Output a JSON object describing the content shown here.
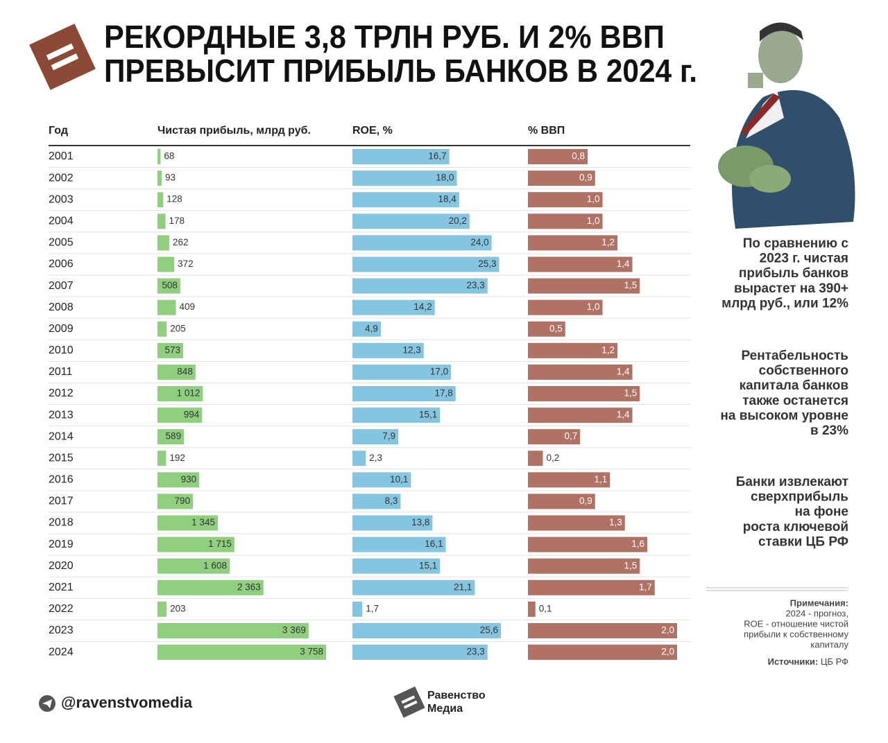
{
  "header": {
    "title_lines": [
      "РЕКОРДНЫЕ 3,8 ТРЛН РУБ. И 2% ВВП",
      "ПРЕВЫСИТ ПРИБЫЛЬ БАНКОВ В 2024 г."
    ]
  },
  "chart_data": {
    "type": "bar-table",
    "category_label": "Год",
    "categories": [
      "2001",
      "2002",
      "2003",
      "2004",
      "2005",
      "2006",
      "2007",
      "2008",
      "2009",
      "2010",
      "2011",
      "2012",
      "2013",
      "2014",
      "2015",
      "2016",
      "2017",
      "2018",
      "2019",
      "2020",
      "2021",
      "2022",
      "2023",
      "2024"
    ],
    "series": [
      {
        "name": "Чистая прибыль, млрд руб.",
        "color": "#8fcf7f",
        "label_color": "#333333",
        "values": [
          68,
          93,
          128,
          178,
          262,
          372,
          508,
          409,
          205,
          573,
          848,
          1012,
          994,
          589,
          192,
          930,
          790,
          1345,
          1715,
          1608,
          2363,
          203,
          3369,
          3758
        ],
        "value_labels": [
          "68",
          "93",
          "128",
          "178",
          "262",
          "372",
          "508",
          "409",
          "205",
          "573",
          "848",
          "1 012",
          "994",
          "589",
          "192",
          "930",
          "790",
          "1 345",
          "1 715",
          "1 608",
          "2 363",
          "203",
          "3 369",
          "3 758"
        ]
      },
      {
        "name": "ROE, %",
        "color": "#86c5e0",
        "label_color": "#333333",
        "values": [
          16.7,
          18.0,
          18.4,
          20.2,
          24.0,
          25.3,
          23.3,
          14.2,
          4.9,
          12.3,
          17.0,
          17.8,
          15.1,
          7.9,
          2.3,
          10.1,
          8.3,
          13.8,
          16.1,
          15.1,
          21.1,
          1.7,
          25.6,
          23.3
        ],
        "value_labels": [
          "16,7",
          "18,0",
          "18,4",
          "20,2",
          "24,0",
          "25,3",
          "23,3",
          "14,2",
          "4,9",
          "12,3",
          "17,0",
          "17,8",
          "15,1",
          "7,9",
          "2,3",
          "10,1",
          "8,3",
          "13,8",
          "16,1",
          "15,1",
          "21,1",
          "1,7",
          "25,6",
          "23,3"
        ]
      },
      {
        "name": "% ВВП",
        "color": "#b07264",
        "label_color": "#ffffff",
        "values": [
          0.8,
          0.9,
          1.0,
          1.0,
          1.2,
          1.4,
          1.5,
          1.0,
          0.5,
          1.2,
          1.4,
          1.5,
          1.4,
          0.7,
          0.2,
          1.1,
          0.9,
          1.3,
          1.6,
          1.5,
          1.7,
          0.1,
          2.0,
          2.0
        ],
        "value_labels": [
          "0,8",
          "0,9",
          "1,0",
          "1,0",
          "1,2",
          "1,4",
          "1,5",
          "1,0",
          "0,5",
          "1,2",
          "1,4",
          "1,5",
          "1,4",
          "0,7",
          "0,2",
          "1,1",
          "0,9",
          "1,3",
          "1,6",
          "1,5",
          "1,7",
          "0,1",
          "2,0",
          "2,0"
        ]
      }
    ]
  },
  "side_notes": [
    [
      "По сравнению с",
      "2023 г. чистая",
      "прибыль банков",
      "вырастет на 390+",
      "млрд руб., или 12%"
    ],
    [
      "Рентабельность",
      "собственного",
      "капитала банков",
      "также останется",
      "на высоком уровне",
      "в 23%"
    ],
    [
      "Банки извлекают",
      "сверхприбыль",
      "на фоне",
      "роста ключевой",
      "ставки ЦБ РФ"
    ]
  ],
  "notes": {
    "heading": "Примечания:",
    "lines": [
      "2024 - прогноз,",
      "ROE - отношение чистой",
      "прибыли к собственному",
      "капиталу"
    ]
  },
  "sources": {
    "heading": "Источники:",
    "text": "ЦБ РФ"
  },
  "footer": {
    "handle": "@ravenstvomedia",
    "brand_lines": [
      "Равенство",
      "Медиа"
    ]
  }
}
